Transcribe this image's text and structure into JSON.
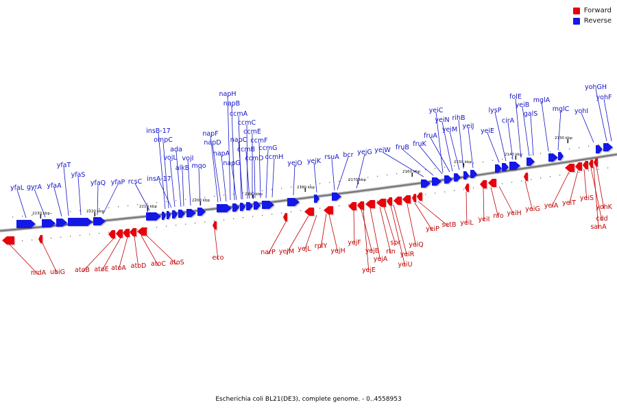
{
  "legend": [
    {
      "label": "Forward",
      "color": "#e8000b"
    },
    {
      "label": "Reverse",
      "color": "#1418e6"
    }
  ],
  "caption": "Escherichia coli BL21(DE3), complete genome. - 0..4558953",
  "colors": {
    "forward": "#e8000b",
    "reverse": "#1418e6",
    "axis": "#7a7a7a",
    "forward_label": "#c00000",
    "reverse_label": "#1010c8"
  },
  "scale_labels": [
    "2130 kbp",
    "2140 kbp",
    "2150 kbp",
    "2160 kbp",
    "2170 kbp",
    "2180 kbp",
    "2190 kbp",
    "2200 kbp",
    "2210 kbp",
    "2220 kbp",
    "2230 kbp"
  ],
  "reverse_genes": [
    "yfaL",
    "gyrA",
    "yfaA",
    "yfaT",
    "yfaS",
    "yfaQ",
    "yfaP",
    "rcsC",
    "insB-17",
    "ompC",
    "insA-17",
    "vojL",
    "ada",
    "alkB",
    "vojI",
    "mqo",
    "napF",
    "napD",
    "napA",
    "napH",
    "napB",
    "napG",
    "ccmA",
    "napC",
    "ccmC",
    "ccmB",
    "ccmE",
    "ccmD",
    "ccmF",
    "ccmG",
    "ccmH",
    "yejO",
    "yejK",
    "rsuA",
    "bcr",
    "yejG",
    "yeiW",
    "fruB",
    "fruK",
    "fruA",
    "yeiC",
    "yeiN",
    "yeiM",
    "rihB",
    "yeiJ",
    "yeiE",
    "lysP",
    "cirA",
    "folE",
    "yeiB",
    "galS",
    "mglA",
    "mglC",
    "yohI",
    "yohGH",
    "yohF"
  ],
  "forward_genes": [
    "nrdA",
    "ubiG",
    "atoB",
    "atoE",
    "atoA",
    "atoD",
    "atoC",
    "atoS",
    "eco",
    "narP",
    "yejM",
    "yejL",
    "rplY",
    "yejH",
    "yejF",
    "yejB",
    "yejE",
    "yejA",
    "rtn",
    "spr",
    "yeiR",
    "yeiU",
    "yeiQ",
    "yeiP",
    "setB",
    "yeiL",
    "yeiI",
    "nfo",
    "yeiH",
    "yeiG",
    "yeiA",
    "yeiT",
    "yeiS",
    "cdd",
    "sanA",
    "yohK"
  ]
}
